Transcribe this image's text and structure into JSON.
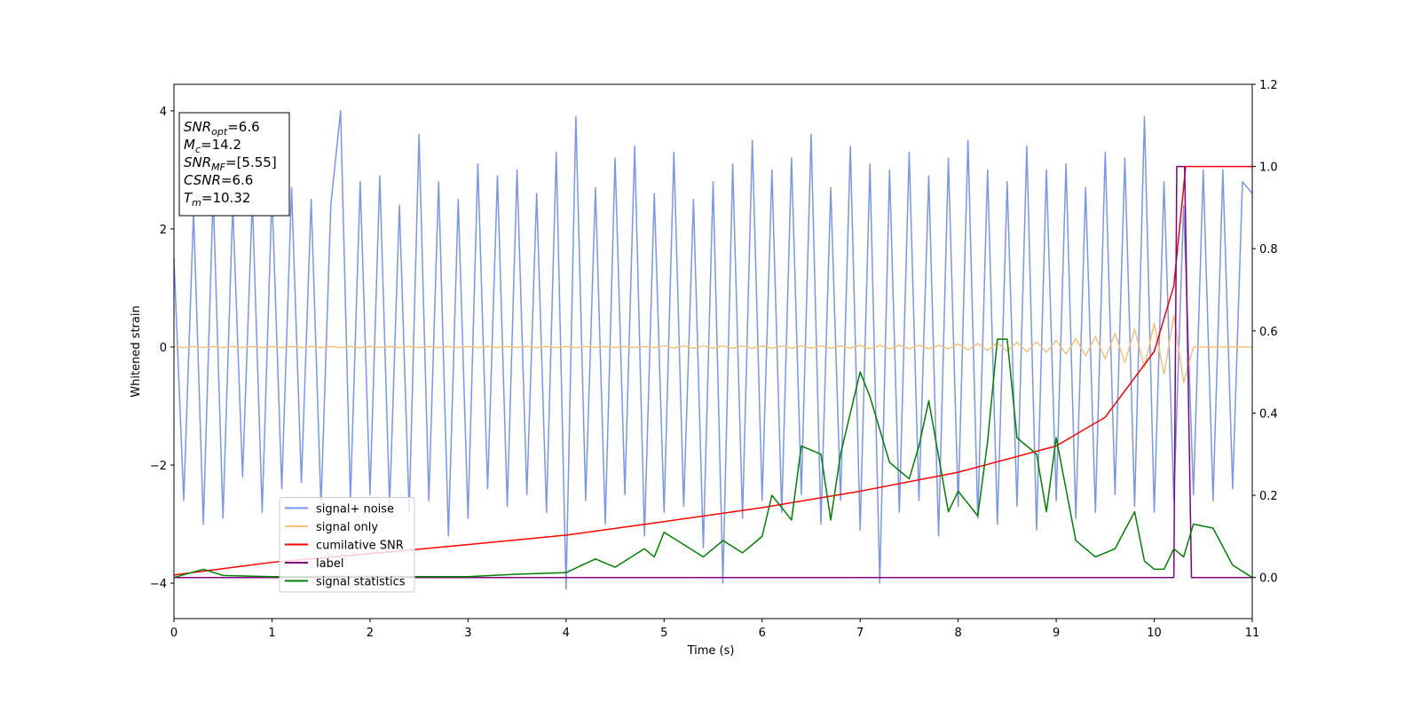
{
  "chart_data": {
    "type": "line",
    "xlabel": "Time (s)",
    "ylabel": "Whitened strain",
    "xlim": [
      0,
      11
    ],
    "xticks": [
      0,
      1,
      2,
      3,
      4,
      5,
      6,
      7,
      8,
      9,
      10,
      11
    ],
    "ylim": [
      -4.6,
      4.45
    ],
    "yticks": [
      {
        "value": -4,
        "label": "−4"
      },
      {
        "value": -2,
        "label": "−2"
      },
      0,
      2,
      4
    ],
    "y2lim": [
      -0.1,
      1.2
    ],
    "y2ticks": [
      {
        "value": 0,
        "label": "0.0"
      },
      0.2,
      0.4,
      0.6,
      0.8,
      {
        "value": 1,
        "label": "1.0"
      },
      1.2
    ],
    "legend": "lower left",
    "grid": false,
    "annotations": [
      {
        "text": "SNR",
        "sub": "opt",
        "value": "=6.6"
      },
      {
        "text": "M",
        "sub": "c",
        "value": "=14.2"
      },
      {
        "text": "SNR",
        "sub": "MF",
        "value": "=[5.55]"
      },
      {
        "text": "CSNR",
        "value": "=6.6"
      },
      {
        "text": "T",
        "sub": "m",
        "value": "=10.32"
      }
    ],
    "x": [
      0,
      0.1,
      0.2,
      0.3,
      0.4,
      0.5,
      0.6,
      0.7,
      0.8,
      0.9,
      1,
      1.1,
      1.2,
      1.3,
      1.4,
      1.5,
      1.6,
      1.7,
      1.8,
      1.9,
      2,
      2.1,
      2.2,
      2.3,
      2.4,
      2.5,
      2.6,
      2.7,
      2.8,
      2.9,
      3,
      3.1,
      3.2,
      3.3,
      3.4,
      3.5,
      3.6,
      3.7,
      3.8,
      3.9,
      4,
      4.1,
      4.2,
      4.3,
      4.4,
      4.5,
      4.6,
      4.7,
      4.8,
      4.9,
      5,
      5.1,
      5.2,
      5.3,
      5.4,
      5.5,
      5.6,
      5.7,
      5.8,
      5.9,
      6,
      6.1,
      6.2,
      6.3,
      6.4,
      6.5,
      6.6,
      6.7,
      6.8,
      6.9,
      7,
      7.1,
      7.2,
      7.3,
      7.4,
      7.5,
      7.6,
      7.7,
      7.8,
      7.9,
      8,
      8.1,
      8.2,
      8.3,
      8.4,
      8.5,
      8.6,
      8.7,
      8.8,
      8.9,
      9,
      9.1,
      9.2,
      9.3,
      9.4,
      9.5,
      9.6,
      9.7,
      9.8,
      9.9,
      10,
      10.1,
      10.2,
      10.3,
      10.4,
      10.5,
      10.6,
      10.7,
      10.8,
      10.9,
      11
    ],
    "series": [
      {
        "name": "signal+ noise",
        "color": "#7996ea",
        "values": [
          1.5,
          -2.6,
          2.3,
          -3.0,
          2.6,
          -2.9,
          2.4,
          -2.2,
          2.5,
          -2.8,
          2.6,
          -2.4,
          2.7,
          -2.3,
          2.5,
          -2.7,
          2.4,
          4.0,
          -2.6,
          2.8,
          -2.5,
          2.9,
          -2.7,
          2.4,
          -2.8,
          3.6,
          -2.6,
          2.8,
          -3.2,
          2.5,
          -2.9,
          3.1,
          -2.4,
          2.9,
          -2.7,
          3.0,
          -2.5,
          2.6,
          -2.8,
          3.3,
          -4.1,
          3.9,
          -2.6,
          2.7,
          -3.0,
          3.2,
          -2.5,
          3.4,
          -3.2,
          2.6,
          -2.8,
          3.3,
          -2.7,
          2.5,
          -3.4,
          2.8,
          -4.0,
          3.1,
          -2.9,
          3.5,
          -2.6,
          3.0,
          -2.8,
          3.2,
          -2.5,
          3.6,
          -3.0,
          2.7,
          -2.6,
          3.4,
          -3.1,
          3.1,
          -4.0,
          3.0,
          -2.8,
          3.3,
          -2.6,
          2.9,
          -3.2,
          3.2,
          -2.7,
          3.5,
          -2.9,
          3.0,
          -3.0,
          2.8,
          -2.7,
          3.4,
          -3.1,
          3.0,
          -2.6,
          3.1,
          -2.9,
          2.7,
          -2.8,
          3.3,
          -2.5,
          3.2,
          -2.7,
          3.9,
          -2.8,
          2.8,
          -2.6,
          2.4,
          -2.5,
          3.0,
          -2.6,
          3.0,
          -2.4,
          2.8,
          2.6
        ]
      },
      {
        "name": "signal only",
        "color": "#f5c27a",
        "values": [
          0.01,
          -0.01,
          0.01,
          -0.01,
          0.01,
          -0.01,
          0.01,
          -0.01,
          0.01,
          -0.01,
          0.01,
          -0.01,
          0.01,
          -0.01,
          0.01,
          -0.01,
          0.01,
          -0.01,
          0.01,
          -0.01,
          0.01,
          -0.01,
          0.01,
          -0.01,
          0.01,
          -0.01,
          0.01,
          -0.01,
          0.01,
          -0.01,
          0.01,
          -0.01,
          0.01,
          -0.01,
          0.01,
          -0.01,
          0.01,
          -0.01,
          0.01,
          -0.01,
          0.01,
          -0.01,
          0.01,
          -0.01,
          0.01,
          -0.01,
          0.01,
          -0.01,
          0.01,
          -0.01,
          0.02,
          -0.02,
          0.02,
          -0.02,
          0.02,
          -0.02,
          0.02,
          -0.02,
          0.02,
          -0.02,
          0.02,
          -0.02,
          0.02,
          -0.02,
          0.02,
          -0.02,
          0.02,
          -0.02,
          0.02,
          -0.02,
          0.03,
          -0.03,
          0.03,
          -0.03,
          0.03,
          -0.03,
          0.03,
          -0.03,
          0.03,
          -0.03,
          0.05,
          -0.05,
          0.06,
          -0.06,
          0.07,
          -0.07,
          0.08,
          -0.08,
          0.09,
          -0.09,
          0.11,
          -0.12,
          0.14,
          -0.15,
          0.18,
          -0.2,
          0.23,
          -0.26,
          0.3,
          -0.34,
          0.4,
          -0.46,
          0.54,
          -0.6,
          0,
          0,
          0,
          0,
          0,
          0,
          0
        ]
      },
      {
        "name": "cumilative SNR",
        "color": "#ff0000",
        "axis": "y2",
        "x": [
          0,
          1,
          2,
          3,
          4,
          5,
          6,
          7,
          8,
          9,
          9.5,
          10,
          10.2,
          10.3,
          10.32,
          11
        ],
        "values": [
          0.006,
          0.037,
          0.058,
          0.08,
          0.103,
          0.136,
          0.17,
          0.21,
          0.256,
          0.32,
          0.39,
          0.55,
          0.71,
          0.95,
          1.0,
          1.0
        ]
      },
      {
        "name": "label",
        "color": "#800080",
        "axis": "y2",
        "x": [
          0,
          10.2,
          10.23,
          10.31,
          10.38,
          11
        ],
        "values": [
          0,
          0,
          1,
          1,
          0,
          0
        ]
      },
      {
        "name": "signal statistics",
        "color": "#008000",
        "axis": "y2",
        "x": [
          0,
          0.3,
          0.5,
          1,
          2,
          3,
          3.5,
          4,
          4.3,
          4.5,
          4.8,
          4.9,
          5.0,
          5.2,
          5.4,
          5.6,
          5.8,
          6.0,
          6.1,
          6.3,
          6.4,
          6.6,
          6.7,
          6.8,
          7.0,
          7.1,
          7.3,
          7.5,
          7.6,
          7.7,
          7.9,
          8.0,
          8.2,
          8.3,
          8.4,
          8.5,
          8.6,
          8.8,
          8.9,
          9.0,
          9.2,
          9.4,
          9.6,
          9.8,
          9.9,
          10.0,
          10.1,
          10.2,
          10.3,
          10.4,
          10.6,
          10.8,
          11
        ],
        "values": [
          0,
          0.02,
          0.005,
          0.002,
          0.002,
          0.002,
          0.008,
          0.012,
          0.045,
          0.025,
          0.07,
          0.05,
          0.11,
          0.08,
          0.05,
          0.09,
          0.06,
          0.1,
          0.2,
          0.14,
          0.32,
          0.3,
          0.14,
          0.3,
          0.5,
          0.44,
          0.28,
          0.24,
          0.32,
          0.43,
          0.16,
          0.21,
          0.15,
          0.33,
          0.58,
          0.58,
          0.34,
          0.3,
          0.16,
          0.34,
          0.09,
          0.05,
          0.07,
          0.16,
          0.04,
          0.02,
          0.02,
          0.07,
          0.05,
          0.13,
          0.12,
          0.03,
          0
        ]
      }
    ]
  }
}
